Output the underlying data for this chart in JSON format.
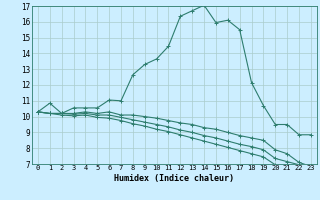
{
  "title": "",
  "xlabel": "Humidex (Indice chaleur)",
  "bg_color": "#cceeff",
  "line_color": "#2e7d6e",
  "grid_color": "#aacccc",
  "xlim": [
    -0.5,
    23.5
  ],
  "ylim": [
    7,
    17
  ],
  "yticks": [
    7,
    8,
    9,
    10,
    11,
    12,
    13,
    14,
    15,
    16,
    17
  ],
  "xticks": [
    0,
    1,
    2,
    3,
    4,
    5,
    6,
    7,
    8,
    9,
    10,
    11,
    12,
    13,
    14,
    15,
    16,
    17,
    18,
    19,
    20,
    21,
    22,
    23
  ],
  "line1_x": [
    0,
    1,
    2,
    3,
    4,
    5,
    6,
    7,
    8,
    9,
    10,
    11,
    12,
    13,
    14,
    15,
    16,
    17,
    18,
    19,
    20,
    21,
    22,
    23
  ],
  "line1_y": [
    10.3,
    10.85,
    10.2,
    10.55,
    10.55,
    10.55,
    11.05,
    11.0,
    12.65,
    13.3,
    13.65,
    14.45,
    16.35,
    16.7,
    17.05,
    15.95,
    16.1,
    15.5,
    12.15,
    10.7,
    9.5,
    9.5,
    8.85,
    8.85
  ],
  "line2_x": [
    0,
    1,
    2,
    3,
    4,
    5,
    6,
    7,
    8,
    9,
    10,
    11,
    12,
    13,
    14,
    15,
    16,
    17,
    18,
    19,
    20,
    21,
    22,
    23
  ],
  "line2_y": [
    10.3,
    10.2,
    10.2,
    10.2,
    10.3,
    10.2,
    10.3,
    10.1,
    10.1,
    10.0,
    9.9,
    9.75,
    9.6,
    9.5,
    9.3,
    9.2,
    9.0,
    8.8,
    8.65,
    8.5,
    7.9,
    7.65,
    7.1,
    6.85
  ],
  "line3_x": [
    0,
    1,
    2,
    3,
    4,
    5,
    6,
    7,
    8,
    9,
    10,
    11,
    12,
    13,
    14,
    15,
    16,
    17,
    18,
    19,
    20,
    21,
    22,
    23
  ],
  "line3_y": [
    10.3,
    10.2,
    10.2,
    10.15,
    10.2,
    10.1,
    10.1,
    9.95,
    9.8,
    9.65,
    9.5,
    9.35,
    9.15,
    9.0,
    8.8,
    8.65,
    8.45,
    8.25,
    8.1,
    7.9,
    7.35,
    7.15,
    6.95,
    6.75
  ],
  "line4_x": [
    0,
    1,
    2,
    3,
    4,
    5,
    6,
    7,
    8,
    9,
    10,
    11,
    12,
    13,
    14,
    15,
    16,
    17,
    18,
    19,
    20,
    21,
    22,
    23
  ],
  "line4_y": [
    10.3,
    10.2,
    10.1,
    10.05,
    10.1,
    9.95,
    9.9,
    9.75,
    9.55,
    9.4,
    9.2,
    9.05,
    8.85,
    8.65,
    8.45,
    8.25,
    8.05,
    7.85,
    7.65,
    7.45,
    6.95,
    6.75,
    6.55,
    6.35
  ]
}
